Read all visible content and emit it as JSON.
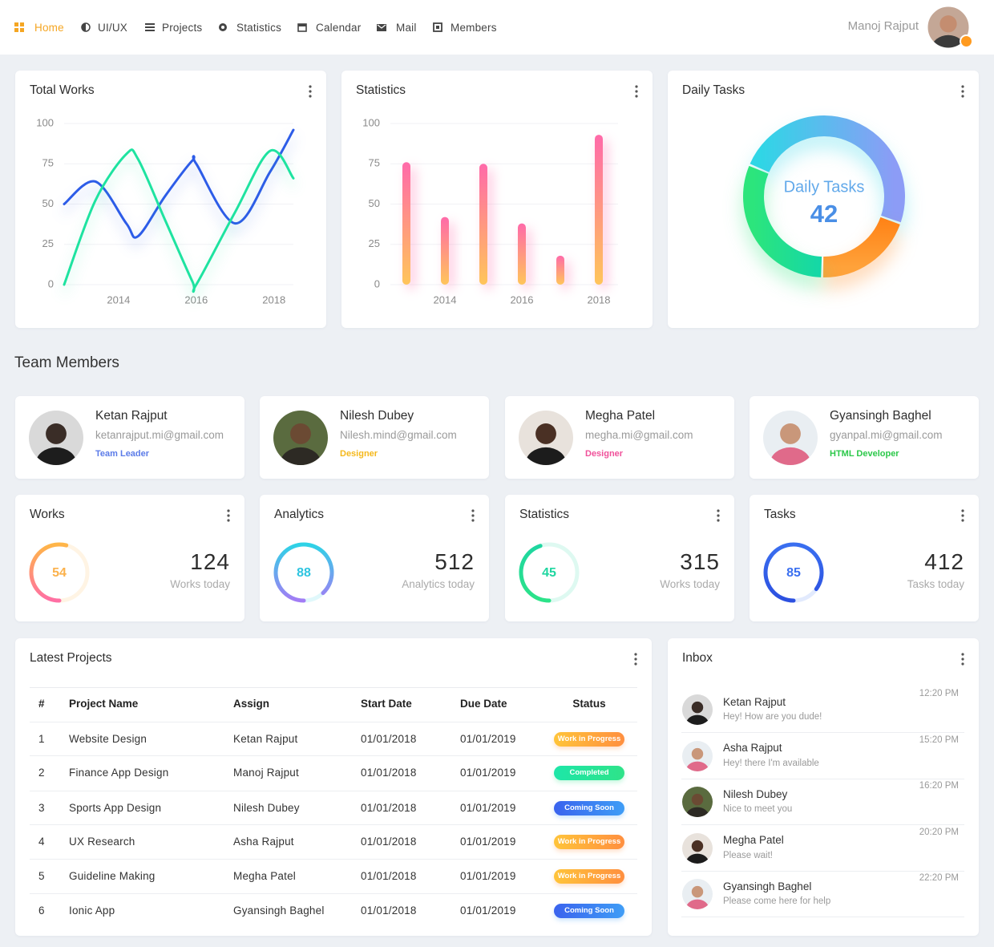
{
  "nav": {
    "items": [
      "Home",
      "UI/UX",
      "Projects",
      "Statistics",
      "Calendar",
      "Mail",
      "Members"
    ],
    "active": 0,
    "active_color": "#f5a623"
  },
  "user": {
    "name": "Manoj Rajput"
  },
  "chart_data": [
    {
      "type": "line",
      "title": "Total Works",
      "x": [
        2012.6,
        2013.4,
        2014.2,
        2014.5,
        2015.2,
        2015.9,
        2016.0,
        2017.0,
        2017.9,
        2018.5
      ],
      "series": [
        {
          "color": "#2d5ce8",
          "values": [
            50,
            64,
            38,
            30,
            55,
            77,
            75,
            38,
            70,
            96
          ]
        },
        {
          "color": "#1ee3a0",
          "values": [
            0,
            52,
            81,
            78,
            40,
            2,
            0,
            45,
            83,
            66
          ]
        }
      ],
      "xlim": [
        2012.6,
        2018.5
      ],
      "xticks": [
        2014,
        2016,
        2018
      ],
      "ylim": [
        0,
        100
      ],
      "yticks": [
        0,
        25,
        50,
        75,
        100
      ],
      "grid": true
    },
    {
      "type": "bar",
      "title": "Statistics",
      "x": [
        2013,
        2014,
        2015,
        2016,
        2017,
        2018
      ],
      "values": [
        76,
        42,
        75,
        38,
        18,
        93
      ],
      "gradient": [
        "#ff6aa9",
        "#ffc55a"
      ],
      "xlim": [
        2012.5,
        2018.5
      ],
      "xticks": [
        2014,
        2016,
        2018
      ],
      "ylim": [
        0,
        100
      ],
      "yticks": [
        0,
        25,
        50,
        75,
        100
      ],
      "grid": true
    },
    {
      "type": "donut",
      "title": "Daily Tasks",
      "values": [
        49,
        20,
        31
      ],
      "colors": [
        [
          "#2fd6e6",
          "#8c9cf6"
        ],
        [
          "#ff8418",
          "#ffa23a"
        ],
        [
          "#2ce57c",
          "#14d7a8"
        ]
      ],
      "center_label": "Daily Tasks",
      "center_value": 42
    }
  ],
  "team": {
    "title": "Team Members",
    "members": [
      {
        "name": "Ketan Rajput",
        "email": "ketanrajput.mi@gmail.com",
        "role": "Team Leader",
        "role_color": "#5b7be8"
      },
      {
        "name": "Nilesh Dubey",
        "email": "Nilesh.mind@gmail.com",
        "role": "Designer",
        "role_color": "#f5b81b"
      },
      {
        "name": "Megha Patel",
        "email": "megha.mi@gmail.com",
        "role": "Designer",
        "role_color": "#f0519a"
      },
      {
        "name": "Gyansingh Baghel",
        "email": "gyanpal.mi@gmail.com",
        "role": "HTML Developer",
        "role_color": "#2cc84a"
      }
    ]
  },
  "stats": [
    {
      "title": "Works",
      "percent": 54,
      "value": 124,
      "caption": "Works today",
      "colors": [
        "#ffb648",
        "#ff6fa4"
      ],
      "text_color": "#fbb14b"
    },
    {
      "title": "Analytics",
      "percent": 88,
      "value": 512,
      "caption": "Analytics today",
      "colors": [
        "#2ed3e6",
        "#a37cf5"
      ],
      "text_color": "#2ec4e0"
    },
    {
      "title": "Statistics",
      "percent": 45,
      "value": 315,
      "caption": "Works today",
      "colors": [
        "#1fd6a0",
        "#2ce389"
      ],
      "text_color": "#1fd6a0"
    },
    {
      "title": "Tasks",
      "percent": 85,
      "value": 412,
      "caption": "Tasks today",
      "colors": [
        "#3a6ff0",
        "#2c50e0"
      ],
      "text_color": "#3a6ff0"
    }
  ],
  "projects": {
    "title": "Latest Projects",
    "columns": [
      "#",
      "Project Name",
      "Assign",
      "Start Date",
      "Due Date",
      "Status"
    ],
    "rows": [
      [
        1,
        "Website Design",
        "Ketan Rajput",
        "01/01/2018",
        "01/01/2019",
        "Work in Progress"
      ],
      [
        2,
        "Finance App Design",
        "Manoj Rajput",
        "01/01/2018",
        "01/01/2019",
        "Completed"
      ],
      [
        3,
        "Sports App Design",
        "Nilesh Dubey",
        "01/01/2018",
        "01/01/2019",
        "Coming Soon"
      ],
      [
        4,
        "UX Research",
        "Asha Rajput",
        "01/01/2018",
        "01/01/2019",
        "Work in Progress"
      ],
      [
        5,
        "Guideline Making",
        "Megha Patel",
        "01/01/2018",
        "01/01/2019",
        "Work in Progress"
      ],
      [
        6,
        "Ionic App",
        "Gyansingh Baghel",
        "01/01/2018",
        "01/01/2019",
        "Coming Soon"
      ]
    ],
    "status_colors": {
      "Work in Progress": [
        "#ffc43a",
        "#ff8f3f"
      ],
      "Completed": [
        "#1de6a8",
        "#2fe389"
      ],
      "Coming Soon": [
        "#3a63ee",
        "#3f9df6"
      ]
    }
  },
  "inbox": {
    "title": "Inbox",
    "messages": [
      {
        "name": "Ketan Rajput",
        "text": "Hey! How are you dude!",
        "time": "12:20 PM"
      },
      {
        "name": "Asha Rajput",
        "text": "Hey! there I'm available",
        "time": "15:20 PM"
      },
      {
        "name": "Nilesh Dubey",
        "text": "Nice to meet you",
        "time": "16:20 PM"
      },
      {
        "name": "Megha Patel",
        "text": "Please wait!",
        "time": "20:20 PM"
      },
      {
        "name": "Gyansingh Baghel",
        "text": "Please come here for help",
        "time": "22:20 PM"
      }
    ]
  }
}
